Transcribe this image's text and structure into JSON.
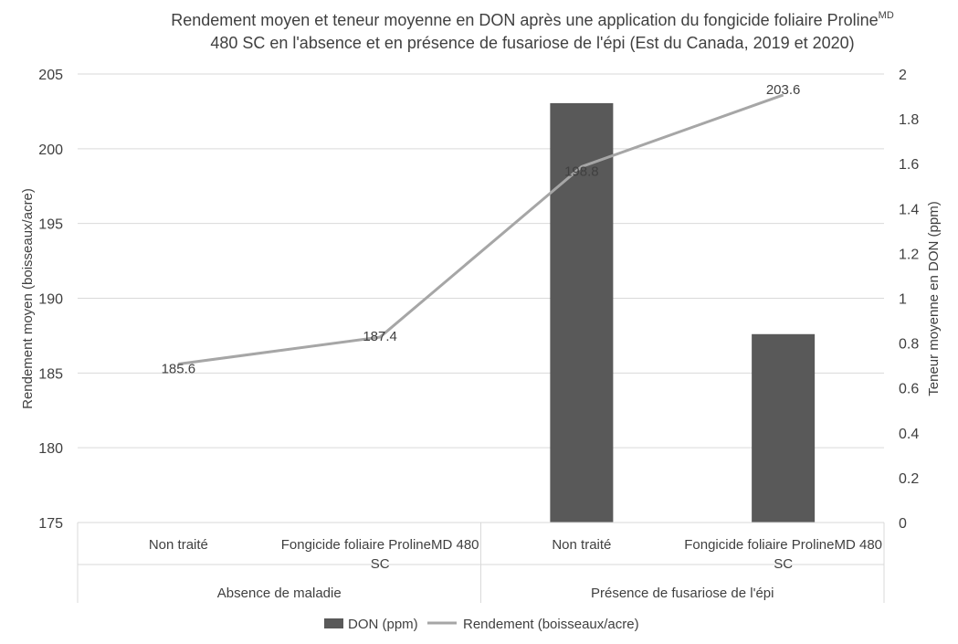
{
  "chart_data": {
    "type": "bar",
    "title_line1": "Rendement moyen et teneur moyenne en DON après une application du fongicide foliaire Proline",
    "title_superscript": "MD",
    "title_line2": "480 SC en l'absence et en présence de fusariose de l'épi (Est du Canada, 2019 et 2020)",
    "ylabel_left": "Rendement moyen (boisseaux/acre)",
    "ylabel_right": "Teneur moyenne en DON (ppm)",
    "ylim_left": [
      175,
      205
    ],
    "yticks_left": [
      "175",
      "180",
      "185",
      "190",
      "195",
      "200",
      "205"
    ],
    "ylim_right": [
      0,
      2
    ],
    "yticks_right": [
      "0",
      "0.2",
      "0.4",
      "0.6",
      "0.8",
      "1",
      "1.2",
      "1.4",
      "1.6",
      "1.8",
      "2"
    ],
    "categories": [
      {
        "line1": "Non traité",
        "line2": ""
      },
      {
        "line1": "Fongicide foliaire ProlineMD 480",
        "line2": "SC"
      },
      {
        "line1": "Non traité",
        "line2": ""
      },
      {
        "line1": "Fongicide foliaire ProlineMD 480",
        "line2": "SC"
      }
    ],
    "groups": [
      {
        "label": "Absence de maladie",
        "span": [
          0,
          1
        ]
      },
      {
        "label": "Présence de fusariose de l'épi",
        "span": [
          2,
          3
        ]
      }
    ],
    "series": [
      {
        "name": "DON (ppm)",
        "kind": "bar",
        "axis": "right",
        "color": "#595959",
        "values": [
          0,
          0,
          1.87,
          0.84
        ]
      },
      {
        "name": "Rendement (boisseaux/acre)",
        "kind": "line",
        "axis": "left",
        "color": "#a6a6a6",
        "values": [
          185.6,
          187.4,
          198.8,
          203.6
        ],
        "labels": [
          "185.6",
          "187.4",
          "198.8",
          "203.6"
        ]
      }
    ],
    "grid": true,
    "legend_position": "bottom"
  }
}
